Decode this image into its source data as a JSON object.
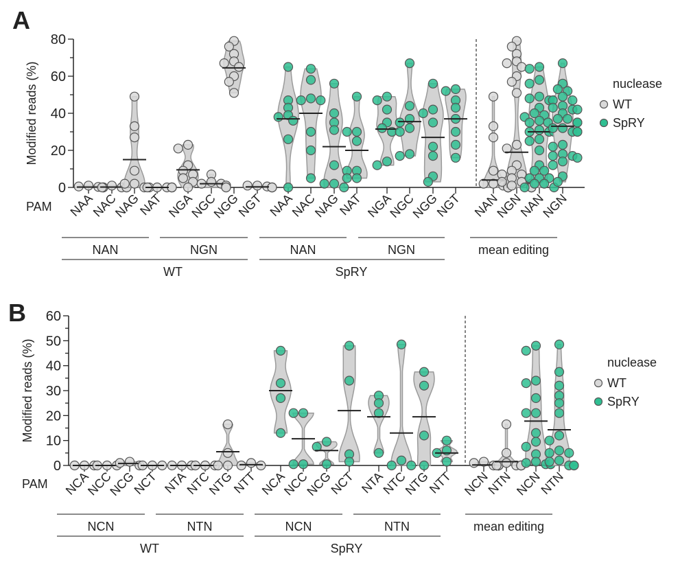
{
  "colors": {
    "WT": "#d9d9d9",
    "SpRY": "#2fbf92",
    "violin_fill": "#d3d3d3",
    "violin_stroke": "#9a9a9a",
    "point_stroke": "#555555"
  },
  "chart_data": [
    {
      "panel_label": "A",
      "type": "violin",
      "ylabel": "Modified reads (%)",
      "ylim": [
        0,
        80
      ],
      "yticks": [
        "0",
        "20",
        "40",
        "60",
        "80"
      ],
      "pam_label": "PAM",
      "legend": {
        "title": "nuclease",
        "entries": [
          "WT",
          "SpRY"
        ],
        "placement": "right"
      },
      "groups_level1": [
        "NAN",
        "NGN",
        "NAN",
        "NGN",
        "mean editing"
      ],
      "groups_level2": [
        "WT",
        "SpRY"
      ],
      "categories": [
        {
          "label": "NAA",
          "nuclease": "WT",
          "mean": 0.2,
          "values": [
            0,
            0,
            0,
            1,
            0,
            0.5,
            0,
            0.3
          ]
        },
        {
          "label": "NAC",
          "nuclease": "WT",
          "mean": 0.2,
          "values": [
            0,
            0,
            1,
            0,
            0
          ]
        },
        {
          "label": "NAG",
          "nuclease": "WT",
          "mean": 15,
          "values": [
            49,
            33,
            27,
            9,
            0,
            0,
            2,
            2
          ]
        },
        {
          "label": "NAT",
          "nuclease": "WT",
          "mean": 0,
          "values": [
            0,
            0,
            0,
            0,
            0,
            0,
            0,
            0
          ]
        },
        {
          "label": "NGA",
          "nuclease": "WT",
          "mean": 9.5,
          "values": [
            21,
            23,
            12,
            9,
            7,
            5,
            3,
            0
          ]
        },
        {
          "label": "NGC",
          "nuclease": "WT",
          "mean": 2,
          "values": [
            7,
            3,
            2,
            1,
            0,
            0,
            1,
            2
          ]
        },
        {
          "label": "NGG",
          "nuclease": "WT",
          "mean": 64.5,
          "values": [
            79,
            76,
            72,
            68,
            67,
            65,
            60,
            57,
            51
          ]
        },
        {
          "label": "NGT",
          "nuclease": "WT",
          "mean": 0.3,
          "values": [
            1,
            0,
            0,
            0.5,
            0,
            0,
            1,
            0
          ]
        },
        {
          "label": "NAA",
          "nuclease": "SpRY",
          "mean": 37,
          "values": [
            65,
            47,
            43,
            39,
            38,
            36,
            26,
            0
          ]
        },
        {
          "label": "NAC",
          "nuclease": "SpRY",
          "mean": 40,
          "values": [
            64,
            58,
            47,
            48,
            47,
            30,
            20,
            5
          ]
        },
        {
          "label": "NAG",
          "nuclease": "SpRY",
          "mean": 22,
          "values": [
            56,
            40,
            35,
            31,
            12,
            2,
            0,
            2
          ]
        },
        {
          "label": "NAT",
          "nuclease": "SpRY",
          "mean": 20,
          "values": [
            49,
            30,
            30,
            25,
            9,
            9,
            5,
            5
          ]
        },
        {
          "label": "NGA",
          "nuclease": "SpRY",
          "mean": 31.5,
          "values": [
            47,
            49,
            42,
            35,
            30,
            32,
            12,
            14
          ]
        },
        {
          "label": "NGC",
          "nuclease": "SpRY",
          "mean": 35.5,
          "values": [
            67,
            44,
            35,
            37,
            32,
            30,
            17,
            18
          ]
        },
        {
          "label": "NGG",
          "nuclease": "SpRY",
          "mean": 27,
          "values": [
            56,
            42,
            40,
            35,
            22,
            17,
            3,
            6
          ]
        },
        {
          "label": "NGT",
          "nuclease": "SpRY",
          "mean": 37,
          "values": [
            52,
            53,
            43,
            47,
            37,
            30,
            23,
            16
          ]
        },
        {
          "label": "NAN",
          "nuclease": "WT",
          "mean": 4,
          "values": [
            49,
            33,
            27,
            9,
            2,
            2,
            1,
            0.5,
            0.3,
            1,
            0,
            0,
            0,
            0,
            0,
            0,
            0,
            0,
            0,
            0
          ]
        },
        {
          "label": "NGN",
          "nuclease": "WT",
          "mean": 19,
          "values": [
            79,
            76,
            72,
            68,
            67,
            65,
            60,
            57,
            51,
            23,
            21,
            12,
            9,
            7,
            5,
            3,
            7,
            3,
            2,
            1,
            2,
            1,
            0.5,
            0,
            0,
            0,
            0,
            0
          ]
        },
        {
          "label": "NAN",
          "nuclease": "SpRY",
          "mean": 30,
          "values": [
            65,
            47,
            43,
            39,
            38,
            36,
            26,
            0,
            64,
            58,
            47,
            48,
            47,
            30,
            20,
            5,
            56,
            40,
            35,
            31,
            12,
            2,
            0,
            2,
            49,
            30,
            30,
            25,
            9,
            9,
            5,
            5
          ]
        },
        {
          "label": "NGN",
          "nuclease": "SpRY",
          "mean": 33,
          "values": [
            47,
            49,
            42,
            35,
            30,
            32,
            12,
            14,
            67,
            44,
            35,
            37,
            32,
            30,
            17,
            18,
            56,
            42,
            40,
            35,
            22,
            17,
            3,
            6,
            52,
            53,
            43,
            47,
            37,
            30,
            23,
            16
          ]
        }
      ]
    },
    {
      "panel_label": "B",
      "type": "violin",
      "ylabel": "Modified reads (%)",
      "ylim": [
        0,
        60
      ],
      "yticks": [
        "0",
        "10",
        "20",
        "30",
        "40",
        "50",
        "60"
      ],
      "pam_label": "PAM",
      "legend": {
        "title": "nuclease",
        "entries": [
          "WT",
          "SpRY"
        ],
        "placement": "right"
      },
      "groups_level1": [
        "NCN",
        "NTN",
        "NCN",
        "NTN",
        "mean editing"
      ],
      "groups_level2": [
        "WT",
        "SpRY"
      ],
      "categories": [
        {
          "label": "NCA",
          "nuclease": "WT",
          "mean": 0,
          "values": [
            0,
            0,
            0
          ]
        },
        {
          "label": "NCC",
          "nuclease": "WT",
          "mean": 0,
          "values": [
            0,
            0,
            0
          ]
        },
        {
          "label": "NCG",
          "nuclease": "WT",
          "mean": 0.8,
          "values": [
            0,
            1.5,
            1
          ]
        },
        {
          "label": "NCT",
          "nuclease": "WT",
          "mean": 0,
          "values": [
            0,
            0,
            0
          ]
        },
        {
          "label": "NTA",
          "nuclease": "WT",
          "mean": 0,
          "values": [
            0,
            0,
            0
          ]
        },
        {
          "label": "NTC",
          "nuclease": "WT",
          "mean": 0,
          "values": [
            0,
            0,
            0
          ]
        },
        {
          "label": "NTG",
          "nuclease": "WT",
          "mean": 5.5,
          "values": [
            16.5,
            5,
            0,
            0
          ]
        },
        {
          "label": "NTT",
          "nuclease": "WT",
          "mean": 0.3,
          "values": [
            1,
            0,
            0
          ]
        },
        {
          "label": "NCA",
          "nuclease": "SpRY",
          "mean": 30,
          "values": [
            46,
            33,
            27,
            13
          ]
        },
        {
          "label": "NCC",
          "nuclease": "SpRY",
          "mean": 10.7,
          "values": [
            21,
            21,
            0.5,
            0.5
          ]
        },
        {
          "label": "NCG",
          "nuclease": "SpRY",
          "mean": 6,
          "values": [
            7.5,
            9.5,
            0.5
          ]
        },
        {
          "label": "NCT",
          "nuclease": "SpRY",
          "mean": 22,
          "values": [
            48,
            34,
            4.5,
            1.5
          ]
        },
        {
          "label": "NTA",
          "nuclease": "SpRY",
          "mean": 19.5,
          "values": [
            28,
            25,
            21,
            5
          ]
        },
        {
          "label": "NTC",
          "nuclease": "SpRY",
          "mean": 13,
          "values": [
            48.5,
            2,
            0,
            0
          ]
        },
        {
          "label": "NTG",
          "nuclease": "SpRY",
          "mean": 19.5,
          "values": [
            37.5,
            32,
            12,
            0
          ]
        },
        {
          "label": "NTT",
          "nuclease": "SpRY",
          "mean": 5,
          "values": [
            10,
            5,
            6,
            1.5
          ]
        },
        {
          "label": "NCN",
          "nuclease": "WT",
          "mean": 0.2,
          "values": [
            0,
            0,
            0,
            0,
            0,
            0,
            0,
            1.5,
            1,
            0,
            0,
            0
          ]
        },
        {
          "label": "NTN",
          "nuclease": "WT",
          "mean": 1.5,
          "values": [
            0,
            0,
            0,
            0,
            0,
            0,
            16.5,
            5,
            0,
            0,
            1,
            0,
            0
          ]
        },
        {
          "label": "NCN",
          "nuclease": "SpRY",
          "mean": 17.8,
          "values": [
            46,
            33,
            27,
            13,
            21,
            21,
            0.5,
            0.5,
            7.5,
            9.5,
            0.5,
            48,
            34,
            4.5,
            1.5,
            1
          ]
        },
        {
          "label": "NTN",
          "nuclease": "SpRY",
          "mean": 14.3,
          "values": [
            28,
            25,
            21,
            5,
            48.5,
            2,
            0,
            0,
            37.5,
            32,
            12,
            0,
            10,
            5,
            6,
            1.5
          ]
        }
      ]
    }
  ]
}
